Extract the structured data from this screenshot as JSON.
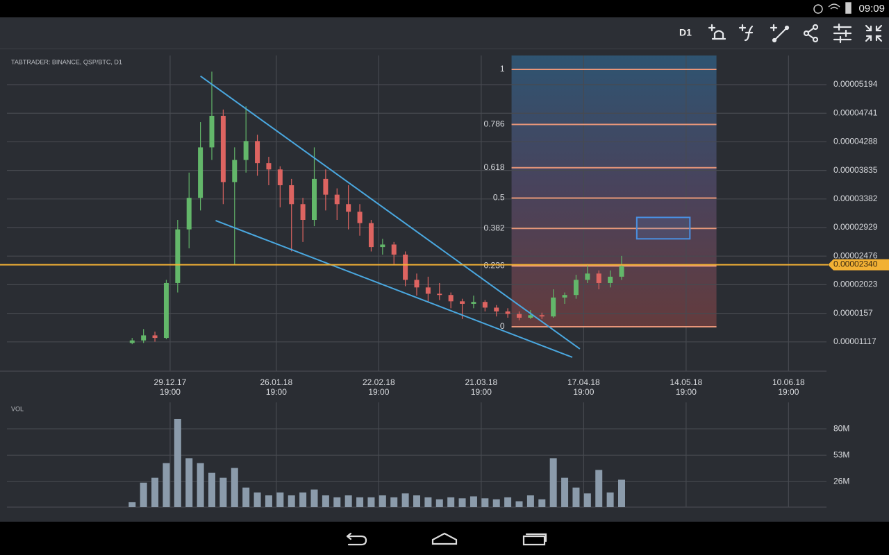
{
  "status_bar": {
    "time": "09:09"
  },
  "toolbar": {
    "timeframe": "D1"
  },
  "chart_data": {
    "type": "candlestick",
    "title": "TABTRADER: BINANCE, QSP/BTC, D1",
    "x": [
      "19.12.17",
      "22.12.17",
      "25.12.17",
      "28.12.17",
      "31.12.17",
      "03.01.18",
      "06.01.18",
      "09.01.18",
      "12.01.18",
      "15.01.18",
      "18.01.18",
      "21.01.18",
      "24.01.18",
      "27.01.18",
      "30.01.18",
      "02.02.18",
      "05.02.18",
      "08.02.18",
      "11.02.18",
      "14.02.18",
      "17.02.18",
      "20.02.18",
      "23.02.18",
      "26.02.18",
      "01.03.18",
      "04.03.18",
      "07.03.18",
      "10.03.18",
      "13.03.18",
      "16.03.18",
      "19.03.18",
      "22.03.18",
      "25.03.18",
      "28.03.18",
      "31.03.18",
      "03.04.18",
      "06.04.18",
      "09.04.18",
      "12.04.18",
      "15.04.18",
      "18.04.18",
      "21.04.18",
      "24.04.18",
      "27.04.18"
    ],
    "open": [
      1.1e-05,
      1.14e-05,
      1.22e-05,
      1.18e-05,
      2.05e-05,
      2.9e-05,
      3.4e-05,
      4.2e-05,
      4.7e-05,
      3.65e-05,
      4e-05,
      4.3e-05,
      3.95e-05,
      3.85e-05,
      3.6e-05,
      3.3e-05,
      3.05e-05,
      3.7e-05,
      3.45e-05,
      3.3e-05,
      3.18e-05,
      3e-05,
      2.62e-05,
      2.66e-05,
      2.5e-05,
      2.1e-05,
      1.98e-05,
      1.88e-05,
      1.86e-05,
      1.76e-05,
      1.72e-05,
      1.75e-05,
      1.66e-05,
      1.6e-05,
      1.56e-05,
      1.5e-05,
      1.54e-05,
      1.52e-05,
      1.82e-05,
      1.86e-05,
      2.1e-05,
      2.2e-05,
      2.05e-05,
      2.15e-05
    ],
    "high": [
      1.18e-05,
      1.32e-05,
      1.28e-05,
      2.1e-05,
      3.05e-05,
      3.8e-05,
      4.6e-05,
      5.4e-05,
      4.8e-05,
      4.2e-05,
      4.85e-05,
      4.4e-05,
      4.05e-05,
      3.9e-05,
      3.7e-05,
      3.4e-05,
      4.2e-05,
      3.85e-05,
      3.55e-05,
      3.6e-05,
      3.3e-05,
      3.05e-05,
      2.75e-05,
      2.7e-05,
      2.55e-05,
      2.2e-05,
      2.15e-05,
      2.05e-05,
      1.9e-05,
      1.8e-05,
      1.85e-05,
      1.78e-05,
      1.7e-05,
      1.65e-05,
      1.6e-05,
      1.62e-05,
      1.58e-05,
      1.95e-05,
      1.9e-05,
      2.18e-05,
      2.35e-05,
      2.25e-05,
      2.25e-05,
      2.48e-05
    ],
    "low": [
      1.08e-05,
      1.1e-05,
      1.12e-05,
      1.16e-05,
      1.9e-05,
      2.6e-05,
      3.2e-05,
      4e-05,
      3.3e-05,
      2.35e-05,
      3.8e-05,
      3.75e-05,
      3.6e-05,
      3.25e-05,
      2.55e-05,
      2.7e-05,
      2.95e-05,
      3.2e-05,
      3.05e-05,
      2.9e-05,
      2.8e-05,
      2.55e-05,
      2.5e-05,
      2.35e-05,
      2e-05,
      1.85e-05,
      1.75e-05,
      1.78e-05,
      1.65e-05,
      1.48e-05,
      1.65e-05,
      1.6e-05,
      1.52e-05,
      1.5e-05,
      1.46e-05,
      1.48e-05,
      1.48e-05,
      1.5e-05,
      1.72e-05,
      1.8e-05,
      2.05e-05,
      1.95e-05,
      1.98e-05,
      2.1e-05
    ],
    "close": [
      1.14e-05,
      1.22e-05,
      1.18e-05,
      2.05e-05,
      2.9e-05,
      3.4e-05,
      4.2e-05,
      4.7e-05,
      3.65e-05,
      4e-05,
      4.3e-05,
      3.95e-05,
      3.85e-05,
      3.6e-05,
      3.3e-05,
      3.05e-05,
      3.7e-05,
      3.45e-05,
      3.3e-05,
      3.18e-05,
      3e-05,
      2.62e-05,
      2.66e-05,
      2.5e-05,
      2.1e-05,
      1.98e-05,
      1.88e-05,
      1.86e-05,
      1.76e-05,
      1.72e-05,
      1.75e-05,
      1.66e-05,
      1.6e-05,
      1.56e-05,
      1.5e-05,
      1.54e-05,
      1.52e-05,
      1.82e-05,
      1.86e-05,
      2.1e-05,
      2.2e-05,
      2.05e-05,
      2.15e-05,
      2.32e-05
    ],
    "color_up": "#63b76a",
    "color_down": "#dd6461",
    "xlim": [
      "16.11.17",
      "20.06.18"
    ],
    "xticks": [
      {
        "date": "29.12.17",
        "time": "19:00"
      },
      {
        "date": "26.01.18",
        "time": "19:00"
      },
      {
        "date": "22.02.18",
        "time": "19:00"
      },
      {
        "date": "21.03.18",
        "time": "19:00"
      },
      {
        "date": "17.04.18",
        "time": "19:00"
      },
      {
        "date": "14.05.18",
        "time": "19:00"
      },
      {
        "date": "10.06.18",
        "time": "19:00"
      }
    ],
    "ylim": [
      6.53e-06,
      5.656e-05
    ],
    "yticks": [
      5.194e-05,
      4.741e-05,
      4.288e-05,
      3.835e-05,
      3.382e-05,
      2.929e-05,
      2.476e-05,
      2.023e-05,
      1.57e-05,
      1.117e-05
    ],
    "grid": true,
    "current_price": {
      "value": 2.34e-05,
      "label": "0.00002340"
    },
    "fibonacci": {
      "levels": [
        1,
        0.786,
        0.618,
        0.5,
        0.382,
        0.236,
        0
      ],
      "low": 1.357e-05,
      "high": 5.436e-05,
      "x": [
        "29.03.18",
        "22.05.18"
      ],
      "color": "#e8967a"
    },
    "trendlines": [
      {
        "x": [
          "06.01.18",
          "16.04.18"
        ],
        "y": [
          5.33e-05,
          1.005e-05
        ]
      },
      {
        "x": [
          "10.01.18",
          "14.04.18"
        ],
        "y": [
          3.04e-05,
          8.73e-06
        ]
      }
    ],
    "trendline_color": "#4aa8e0",
    "rectangle": {
      "x": [
        "01.05.18",
        "15.05.18"
      ],
      "y": [
        3.09e-05,
        2.75e-05
      ],
      "color": "#4a90e2"
    },
    "volume": {
      "label": "VOL",
      "values": [
        5,
        25,
        30,
        45,
        90,
        50,
        45,
        35,
        30,
        40,
        20,
        15,
        12,
        15,
        12,
        15,
        18,
        12,
        10,
        12,
        10,
        10,
        12,
        10,
        14,
        12,
        10,
        8,
        10,
        9,
        11,
        9,
        8,
        10,
        6,
        12,
        8,
        50,
        30,
        20,
        14,
        38,
        15,
        28
      ],
      "ylim": [
        0,
        107
      ],
      "yticks": [
        {
          "value": 80,
          "label": "80M"
        },
        {
          "value": 53,
          "label": "53M"
        },
        {
          "value": 26,
          "label": "26M"
        }
      ],
      "color": "#8b9bab"
    }
  }
}
